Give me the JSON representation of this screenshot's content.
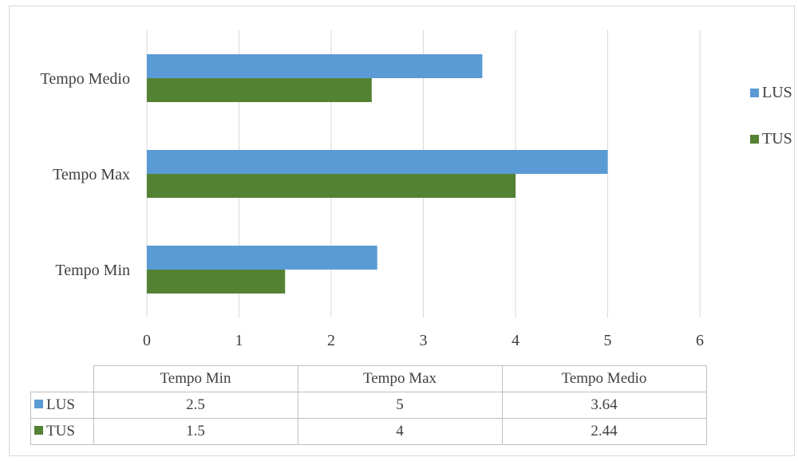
{
  "chart_data": {
    "type": "bar",
    "orientation": "horizontal",
    "categories": [
      "Tempo Min",
      "Tempo Max",
      "Tempo Medio"
    ],
    "series": [
      {
        "name": "LUS",
        "values": [
          2.5,
          5,
          3.64
        ],
        "color": "#5b9bd5"
      },
      {
        "name": "TUS",
        "values": [
          1.5,
          4,
          2.44
        ],
        "color": "#548235"
      }
    ],
    "xlim": [
      0,
      6
    ],
    "xticks": [
      0,
      1,
      2,
      3,
      4,
      5,
      6
    ],
    "grid": true,
    "legend": "right",
    "data_table": true
  }
}
